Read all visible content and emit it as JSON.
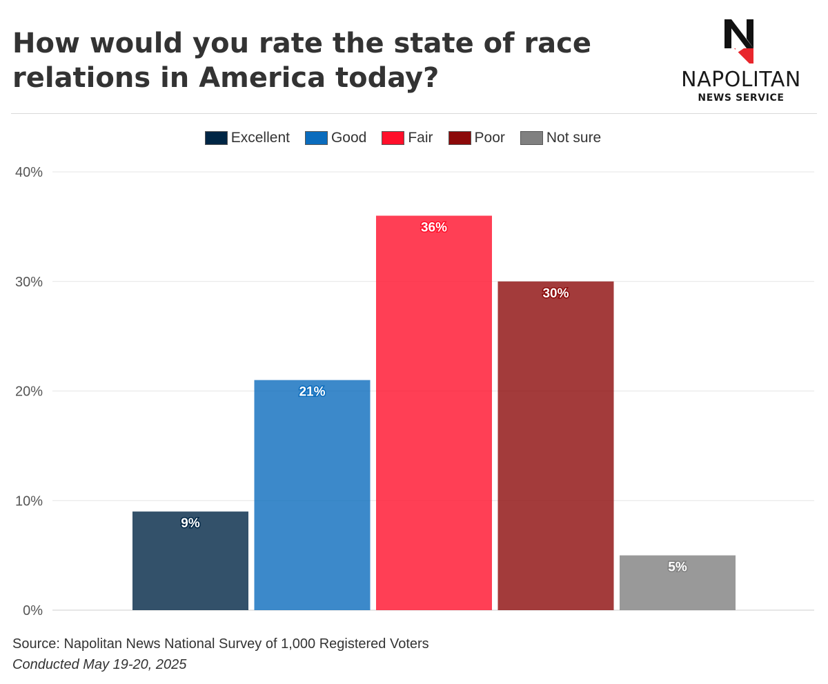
{
  "title": "How would you rate the state of race relations in America today?",
  "logo": {
    "name": "NAPOLITAN",
    "sub": "NEWS SERVICE",
    "mark_letter": "N"
  },
  "chart_data": {
    "type": "bar",
    "title": "How would you rate the state of race relations in America today?",
    "categories": [
      "Excellent",
      "Good",
      "Fair",
      "Poor",
      "Not sure"
    ],
    "values": [
      9,
      21,
      36,
      30,
      5
    ],
    "value_labels": [
      "9%",
      "21%",
      "36%",
      "30%",
      "5%"
    ],
    "colors": [
      "#002645",
      "#0b6cbd",
      "#ff0f2a",
      "#8c0a0a",
      "#808080"
    ],
    "ylim": [
      0,
      40
    ],
    "yticks": [
      0,
      10,
      20,
      30,
      40
    ],
    "ytick_labels": [
      "0%",
      "10%",
      "20%",
      "30%",
      "40%"
    ],
    "xlabel": "",
    "ylabel": "",
    "grid": true,
    "legend": "top-center"
  },
  "footer": {
    "source": "Source: Napolitan News National Survey of 1,000 Registered Voters",
    "conducted": "Conducted May 19-20, 2025"
  }
}
